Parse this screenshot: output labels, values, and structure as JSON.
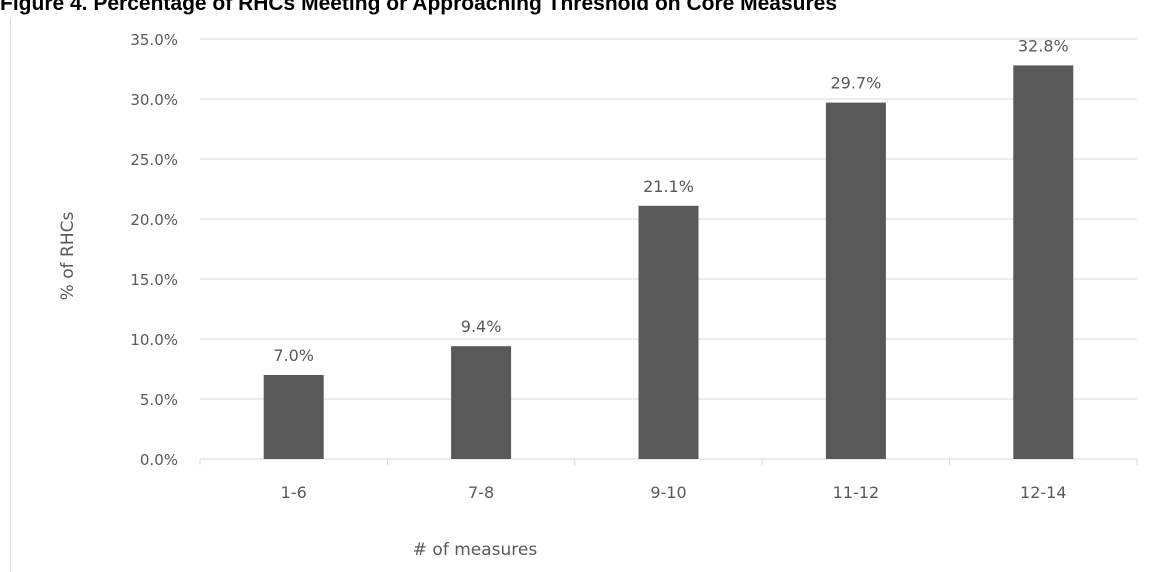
{
  "figure": {
    "title": "Figure 4. Percentage of RHCs Meeting or Approaching Threshold on Core Measures"
  },
  "chart_data": {
    "type": "bar",
    "title": "",
    "xlabel": "# of measures",
    "ylabel": "% of RHCs",
    "categories": [
      "1-6",
      "7-8",
      "9-10",
      "11-12",
      "12-14"
    ],
    "series": [
      {
        "values": [
          7.0,
          9.4,
          21.1,
          29.7,
          32.8
        ],
        "data_labels": [
          "7.0%",
          "9.4%",
          "21.1%",
          "29.7%",
          "32.8%"
        ]
      }
    ],
    "ylim": [
      0,
      35
    ],
    "y_ticks": [
      0,
      5,
      10,
      15,
      20,
      25,
      30,
      35
    ],
    "y_tick_labels": [
      "0.0%",
      "5.0%",
      "10.0%",
      "15.0%",
      "20.0%",
      "25.0%",
      "30.0%",
      "35.0%"
    ],
    "grid": true,
    "legend": "none",
    "colors": {
      "bar": "#595959",
      "gridline": "#d9d9d9",
      "axis_text": "#595959"
    }
  }
}
